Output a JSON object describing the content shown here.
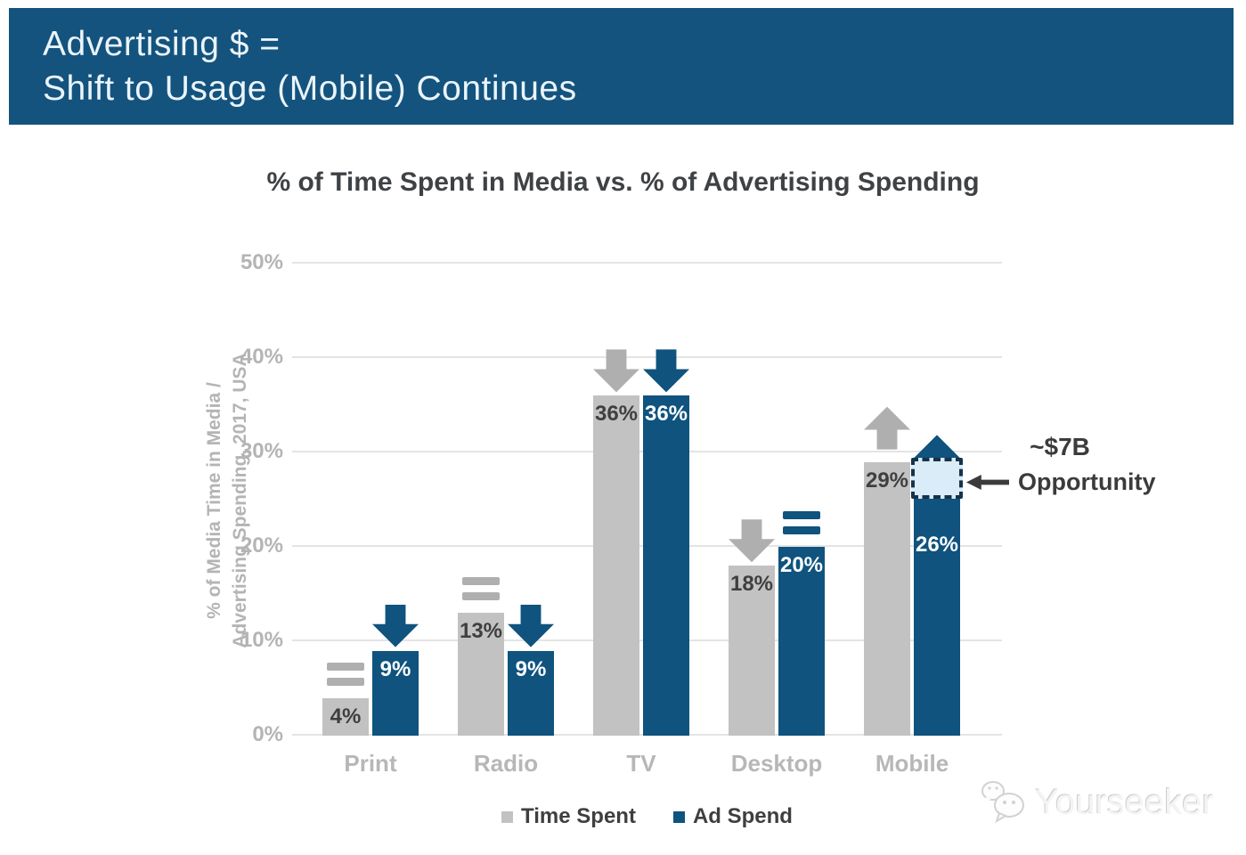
{
  "banner": {
    "line1": "Advertising $ =",
    "line2": "Shift to Usage (Mobile) Continues",
    "bg_color": "#14537D",
    "text_color": "#EAF4FA"
  },
  "chart_data": {
    "type": "bar",
    "title": "% of Time Spent in Media vs. % of Advertising Spending",
    "ylabel_line1": "% of Media Time in Media /",
    "ylabel_line2": "Advertising Spending, 2017, USA",
    "ylim": [
      0,
      50
    ],
    "yticks": [
      "0%",
      "10%",
      "20%",
      "30%",
      "40%",
      "50%"
    ],
    "grid": true,
    "legend_position": "bottom",
    "categories": [
      "Print",
      "Radio",
      "TV",
      "Desktop",
      "Mobile"
    ],
    "series": [
      {
        "name": "Time Spent",
        "color": "#C2C2C2",
        "values": [
          4,
          13,
          36,
          18,
          29
        ],
        "labels": [
          "4%",
          "13%",
          "36%",
          "18%",
          "29%"
        ],
        "trends": [
          "flat",
          "flat",
          "down",
          "down",
          "up"
        ]
      },
      {
        "name": "Ad Spend",
        "color": "#0F537E",
        "values": [
          9,
          9,
          36,
          20,
          26
        ],
        "labels": [
          "9%",
          "9%",
          "36%",
          "20%",
          "26%"
        ],
        "trends": [
          "down",
          "down",
          "down",
          "flat",
          "up"
        ]
      }
    ],
    "annotation": {
      "line1": "~$7B",
      "line2": "Opportunity",
      "box_fill": "#D9ECF7",
      "box_border": "#16334B"
    }
  },
  "watermark": {
    "text": "Yourseeker"
  }
}
